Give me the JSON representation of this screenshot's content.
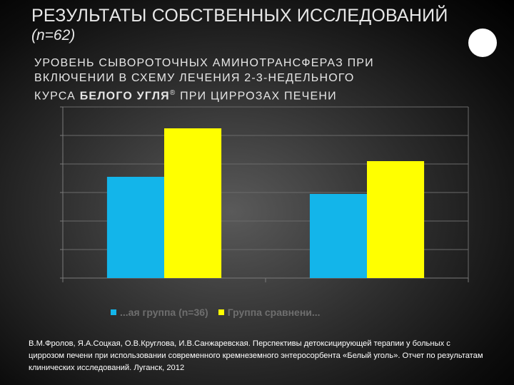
{
  "slide": {
    "title_main": "РЕЗУЛЬТАТЫ СОБСТВЕННЫХ ИССЛЕДОВАНИЙ",
    "title_sub": "(n=62)",
    "subtitle_line1": "УРОВЕНЬ СЫВОРОТОЧНЫХ АМИНОТРАНСФЕРАЗ ПРИ",
    "subtitle_line2": "ВКЛЮЧЕНИИ В СХЕМУ ЛЕЧЕНИЯ 2-3-НЕДЕЛЬНОГО",
    "subtitle_line3_pre": "КУРСА",
    "subtitle_line3_bold": "БЕЛОГО УГЛЯ",
    "subtitle_line3_sup": "®",
    "subtitle_line3_post": "ПРИ ЦИРРОЗАХ ПЕЧЕНИ",
    "citation": "В.М.Фролов, Я.А.Соцкая, О.В.Круглова, И.В.Санжаревская. Перспективы детоксицирующей терапии у больных с циррозом печени при использовании современного кремнеземного энтеросорбента «Белый уголь». Отчет по результатам клинических исследований. Луганск, 2012"
  },
  "chart_data": {
    "type": "bar",
    "categories": [
      "",
      ""
    ],
    "ylim": [
      0,
      6
    ],
    "grid": true,
    "legend_position": "bottom",
    "series": [
      {
        "name": "...ая группа (n=36)",
        "color": "#13b5ea",
        "values": [
          3.55,
          2.95
        ]
      },
      {
        "name": "Группа сравнени...",
        "color": "#ffff00",
        "values": [
          5.25,
          4.1
        ]
      }
    ],
    "xlabel": "",
    "ylabel": ""
  }
}
